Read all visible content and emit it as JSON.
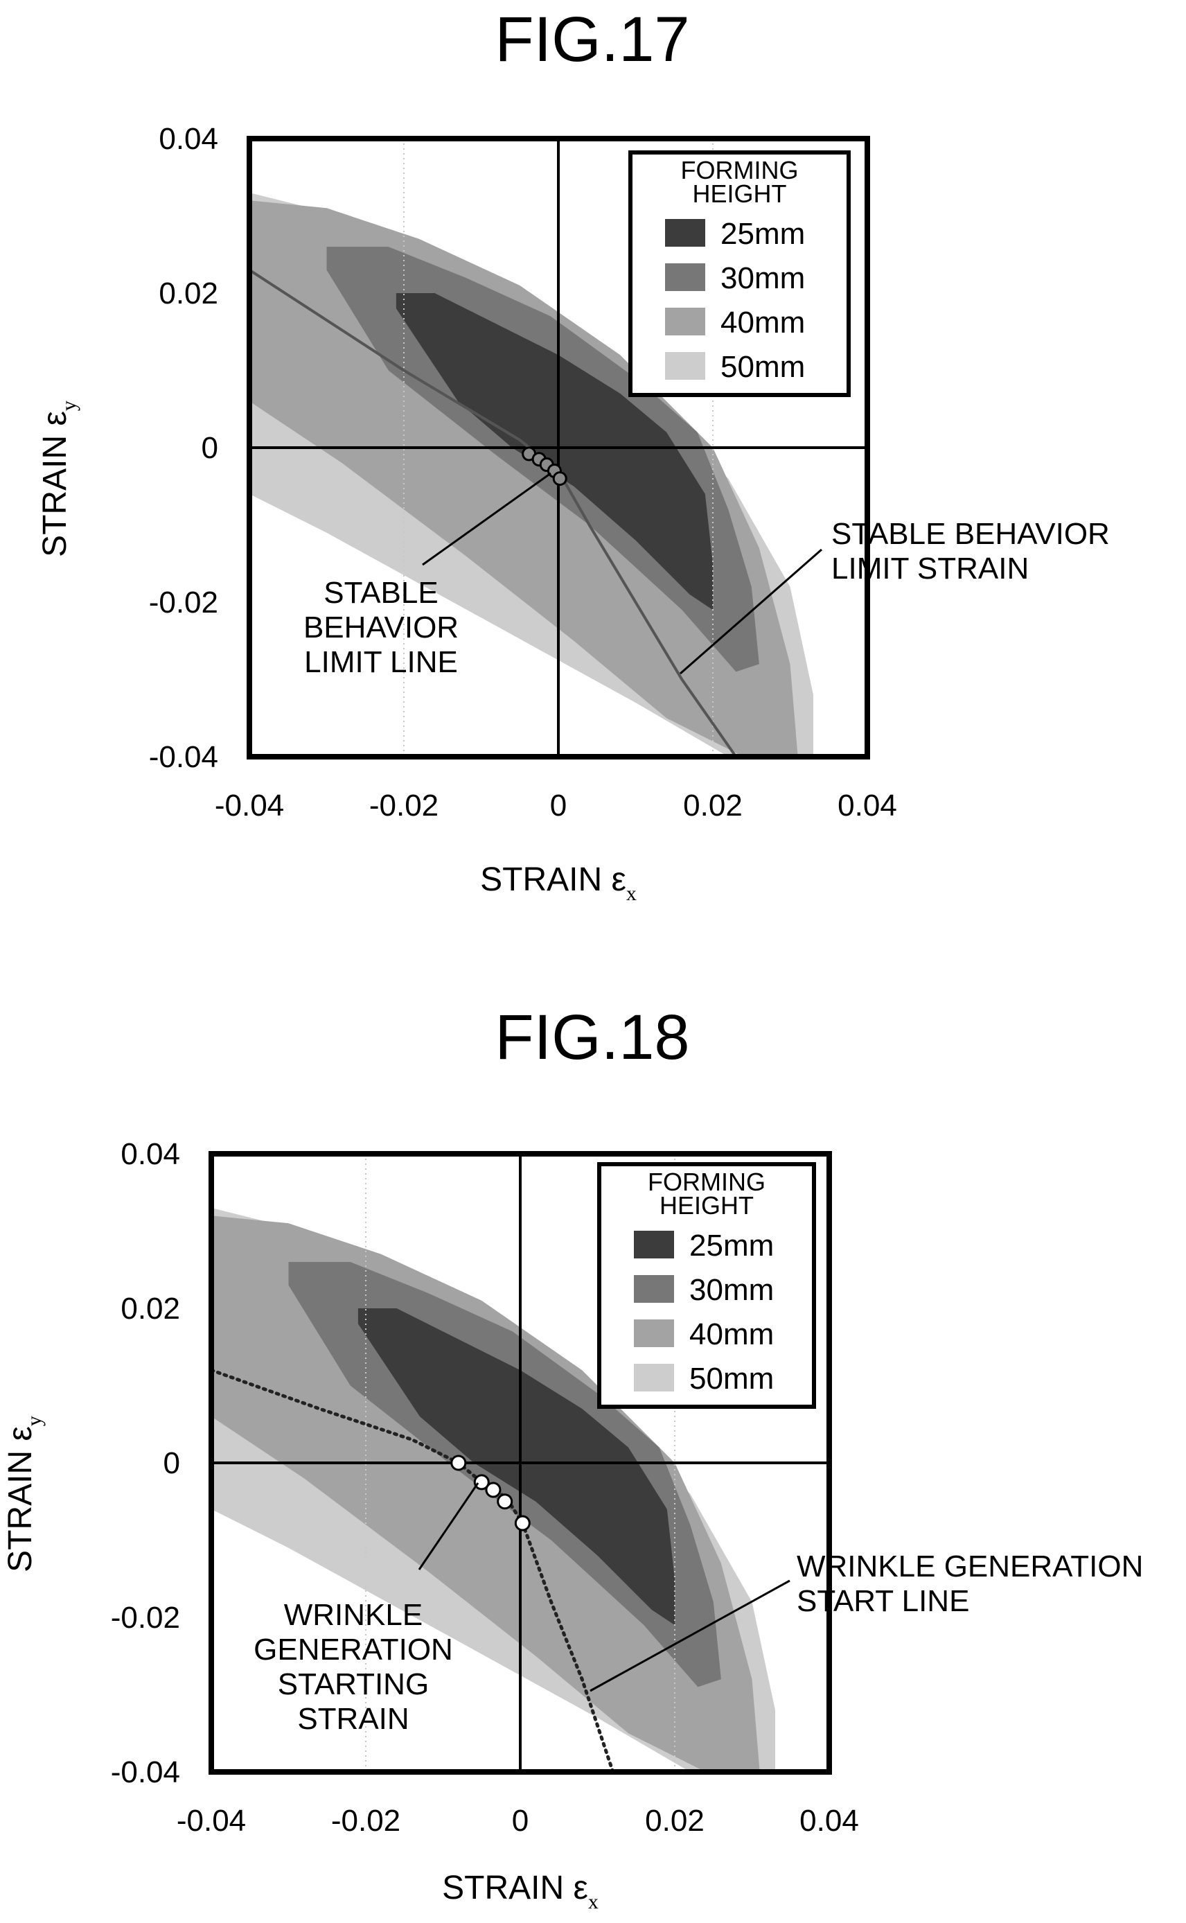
{
  "colors": {
    "h25": "#3c3c3c",
    "h30": "#777777",
    "h40": "#a3a3a3",
    "h50": "#cdcdcd",
    "frame": "#000000",
    "grid": "#c8c8c8",
    "limit_line": "#555555"
  },
  "chart_data": [
    {
      "figure": "FIG.17",
      "type": "area",
      "title": "FIG.17",
      "xlabel": "STRAIN ε",
      "xlabel_sub": "x",
      "ylabel": "STRAIN ε",
      "ylabel_sub": "y",
      "xlim": [
        -0.04,
        0.04
      ],
      "ylim": [
        -0.04,
        0.04
      ],
      "xticks": [
        "-0.04",
        "-0.02",
        "0",
        "0.02",
        "0.04"
      ],
      "yticks": [
        "-0.04",
        "-0.02",
        "0",
        "0.02",
        "0.04"
      ],
      "grid": "dotted vertical at ±0.02, solid axes at 0",
      "legend": {
        "title_line1": "FORMING",
        "title_line2": "HEIGHT",
        "placement": "top-right",
        "entries": [
          "25mm",
          "30mm",
          "40mm",
          "50mm"
        ]
      },
      "series": [
        {
          "name": "50mm",
          "color_key": "h50",
          "polygon": [
            [
              -0.04,
              0.033
            ],
            [
              -0.024,
              0.029
            ],
            [
              -0.008,
              0.021
            ],
            [
              0.008,
              0.01
            ],
            [
              0.022,
              -0.004
            ],
            [
              0.03,
              -0.018
            ],
            [
              0.033,
              -0.032
            ],
            [
              0.033,
              -0.04
            ],
            [
              0.022,
              -0.04
            ],
            [
              0.01,
              -0.033
            ],
            [
              -0.01,
              -0.022
            ],
            [
              -0.03,
              -0.011
            ],
            [
              -0.04,
              -0.006
            ]
          ]
        },
        {
          "name": "40mm",
          "color_key": "h40",
          "polygon": [
            [
              -0.04,
              0.032
            ],
            [
              -0.03,
              0.031
            ],
            [
              -0.018,
              0.027
            ],
            [
              -0.005,
              0.021
            ],
            [
              0.008,
              0.012
            ],
            [
              0.02,
              0.0
            ],
            [
              0.026,
              -0.013
            ],
            [
              0.03,
              -0.028
            ],
            [
              0.031,
              -0.04
            ],
            [
              0.024,
              -0.04
            ],
            [
              0.014,
              -0.035
            ],
            [
              0.002,
              -0.025
            ],
            [
              -0.012,
              -0.014
            ],
            [
              -0.028,
              -0.002
            ],
            [
              -0.04,
              0.006
            ]
          ]
        },
        {
          "name": "30mm",
          "color_key": "h30",
          "polygon": [
            [
              -0.03,
              0.026
            ],
            [
              -0.022,
              0.026
            ],
            [
              -0.012,
              0.022
            ],
            [
              -0.001,
              0.017
            ],
            [
              0.01,
              0.009
            ],
            [
              0.018,
              0.002
            ],
            [
              0.022,
              -0.008
            ],
            [
              0.025,
              -0.018
            ],
            [
              0.026,
              -0.028
            ],
            [
              0.023,
              -0.029
            ],
            [
              0.016,
              -0.021
            ],
            [
              0.004,
              -0.01
            ],
            [
              -0.008,
              -0.001
            ],
            [
              -0.022,
              0.01
            ],
            [
              -0.03,
              0.023
            ]
          ]
        },
        {
          "name": "25mm",
          "color_key": "h25",
          "polygon": [
            [
              -0.021,
              0.02
            ],
            [
              -0.016,
              0.02
            ],
            [
              -0.008,
              0.016
            ],
            [
              0.0,
              0.012
            ],
            [
              0.008,
              0.007
            ],
            [
              0.014,
              0.002
            ],
            [
              0.019,
              -0.006
            ],
            [
              0.02,
              -0.015
            ],
            [
              0.02,
              -0.021
            ],
            [
              0.017,
              -0.019
            ],
            [
              0.01,
              -0.012
            ],
            [
              0.002,
              -0.005
            ],
            [
              -0.006,
              0.0
            ],
            [
              -0.013,
              0.006
            ],
            [
              -0.021,
              0.018
            ]
          ]
        }
      ],
      "line": {
        "name": "stable behavior limit strain",
        "style": "solid",
        "points": [
          [
            -0.04,
            0.023
          ],
          [
            -0.02,
            0.01
          ],
          [
            -0.005,
            0.001
          ],
          [
            0.0,
            -0.003
          ],
          [
            0.004,
            -0.01
          ],
          [
            0.01,
            -0.02
          ],
          [
            0.016,
            -0.03
          ],
          [
            0.023,
            -0.04
          ]
        ]
      },
      "markers": {
        "style": "filled-gray circles",
        "points": [
          [
            -0.0038,
            -0.0008
          ],
          [
            -0.0025,
            -0.0015
          ],
          [
            -0.0015,
            -0.0022
          ],
          [
            -0.0005,
            -0.003
          ],
          [
            0.0002,
            -0.004
          ]
        ]
      },
      "annotations": [
        {
          "lines": [
            "STABLE",
            "BEHAVIOR",
            "LIMIT LINE"
          ],
          "anchor": "markers"
        },
        {
          "lines": [
            "STABLE BEHAVIOR",
            "LIMIT STRAIN"
          ],
          "anchor": "line"
        }
      ]
    },
    {
      "figure": "FIG.18",
      "type": "area",
      "title": "FIG.18",
      "xlabel": "STRAIN ε",
      "xlabel_sub": "x",
      "ylabel": "STRAIN ε",
      "ylabel_sub": "y",
      "xlim": [
        -0.04,
        0.04
      ],
      "ylim": [
        -0.04,
        0.04
      ],
      "xticks": [
        "-0.04",
        "-0.02",
        "0",
        "0.02",
        "0.04"
      ],
      "yticks": [
        "-0.04",
        "-0.02",
        "0",
        "0.02",
        "0.04"
      ],
      "grid": "dotted vertical at ±0.02, solid axes at 0",
      "legend": {
        "title_line1": "FORMING",
        "title_line2": "HEIGHT",
        "placement": "top-right",
        "entries": [
          "25mm",
          "30mm",
          "40mm",
          "50mm"
        ]
      },
      "series": [
        {
          "name": "50mm",
          "color_key": "h50",
          "polygon": [
            [
              -0.04,
              0.033
            ],
            [
              -0.024,
              0.029
            ],
            [
              -0.008,
              0.021
            ],
            [
              0.008,
              0.01
            ],
            [
              0.022,
              -0.004
            ],
            [
              0.03,
              -0.018
            ],
            [
              0.033,
              -0.032
            ],
            [
              0.033,
              -0.04
            ],
            [
              0.022,
              -0.04
            ],
            [
              0.01,
              -0.033
            ],
            [
              -0.01,
              -0.022
            ],
            [
              -0.03,
              -0.011
            ],
            [
              -0.04,
              -0.006
            ]
          ]
        },
        {
          "name": "40mm",
          "color_key": "h40",
          "polygon": [
            [
              -0.04,
              0.032
            ],
            [
              -0.03,
              0.031
            ],
            [
              -0.018,
              0.027
            ],
            [
              -0.005,
              0.021
            ],
            [
              0.008,
              0.012
            ],
            [
              0.02,
              0.0
            ],
            [
              0.026,
              -0.013
            ],
            [
              0.03,
              -0.028
            ],
            [
              0.031,
              -0.04
            ],
            [
              0.024,
              -0.04
            ],
            [
              0.014,
              -0.035
            ],
            [
              0.002,
              -0.025
            ],
            [
              -0.012,
              -0.014
            ],
            [
              -0.028,
              -0.002
            ],
            [
              -0.04,
              0.006
            ]
          ]
        },
        {
          "name": "30mm",
          "color_key": "h30",
          "polygon": [
            [
              -0.03,
              0.026
            ],
            [
              -0.022,
              0.026
            ],
            [
              -0.012,
              0.022
            ],
            [
              -0.001,
              0.017
            ],
            [
              0.01,
              0.009
            ],
            [
              0.018,
              0.002
            ],
            [
              0.022,
              -0.008
            ],
            [
              0.025,
              -0.018
            ],
            [
              0.026,
              -0.028
            ],
            [
              0.023,
              -0.029
            ],
            [
              0.016,
              -0.021
            ],
            [
              0.004,
              -0.01
            ],
            [
              -0.008,
              -0.001
            ],
            [
              -0.022,
              0.01
            ],
            [
              -0.03,
              0.023
            ]
          ]
        },
        {
          "name": "25mm",
          "color_key": "h25",
          "polygon": [
            [
              -0.021,
              0.02
            ],
            [
              -0.016,
              0.02
            ],
            [
              -0.008,
              0.016
            ],
            [
              0.0,
              0.012
            ],
            [
              0.008,
              0.007
            ],
            [
              0.014,
              0.002
            ],
            [
              0.019,
              -0.006
            ],
            [
              0.02,
              -0.015
            ],
            [
              0.02,
              -0.021
            ],
            [
              0.017,
              -0.019
            ],
            [
              0.01,
              -0.012
            ],
            [
              0.002,
              -0.005
            ],
            [
              -0.006,
              0.0
            ],
            [
              -0.013,
              0.006
            ],
            [
              -0.021,
              0.018
            ]
          ]
        }
      ],
      "line": {
        "name": "wrinkle generation start line",
        "style": "dotted",
        "points": [
          [
            -0.04,
            0.012
          ],
          [
            -0.026,
            0.007
          ],
          [
            -0.014,
            0.003
          ],
          [
            -0.008,
            0.0
          ],
          [
            -0.005,
            -0.0025
          ],
          [
            -0.003,
            -0.0035
          ],
          [
            -0.0015,
            -0.005
          ],
          [
            0.0003,
            -0.0078
          ],
          [
            0.004,
            -0.018
          ],
          [
            0.008,
            -0.028
          ],
          [
            0.012,
            -0.04
          ]
        ]
      },
      "markers": {
        "style": "open white circles",
        "points": [
          [
            -0.008,
            0.0
          ],
          [
            -0.005,
            -0.0025
          ],
          [
            -0.0035,
            -0.0035
          ],
          [
            -0.002,
            -0.005
          ],
          [
            0.0003,
            -0.0078
          ]
        ]
      },
      "annotations": [
        {
          "lines": [
            "WRINKLE",
            "GENERATION",
            "STARTING",
            "STRAIN"
          ],
          "anchor": "markers"
        },
        {
          "lines": [
            "WRINKLE GENERATION",
            "START LINE"
          ],
          "anchor": "line"
        }
      ]
    }
  ]
}
